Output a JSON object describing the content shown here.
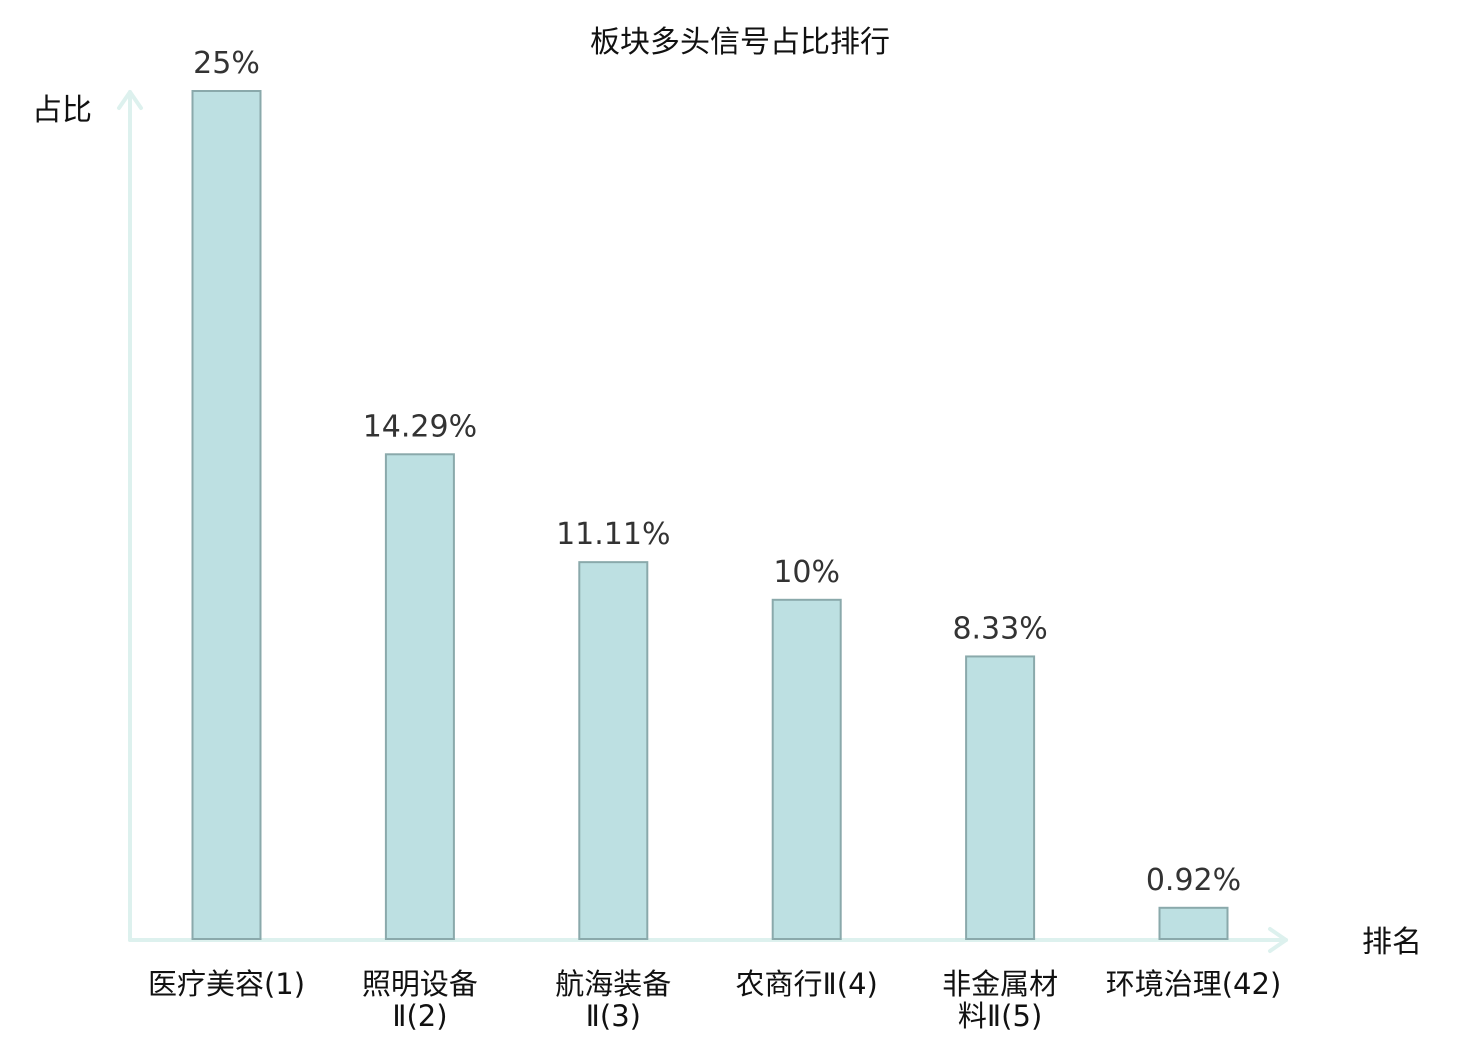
{
  "chart_data": {
    "type": "bar",
    "title": "板块多头信号占比排行",
    "ylabel": "占比",
    "xlabel": "排名",
    "categories": [
      [
        "医疗美容(1)"
      ],
      [
        "照明设备",
        "Ⅱ(2)"
      ],
      [
        "航海装备",
        "Ⅱ(3)"
      ],
      [
        "农商行Ⅱ(4)"
      ],
      [
        "非金属材",
        "料Ⅱ(5)"
      ],
      [
        "环境治理(42)"
      ]
    ],
    "values": [
      25,
      14.29,
      11.11,
      10,
      8.33,
      0.92
    ],
    "value_labels": [
      "25%",
      "14.29%",
      "11.11%",
      "10%",
      "8.33%",
      "0.92%"
    ],
    "highlight_index": 5,
    "ylim": [
      0,
      25
    ],
    "grid": false,
    "colors": {
      "bar_fill": "#bde0e2",
      "bar_stroke": "#8aa9ab",
      "axis": "#ddf1ee",
      "highlight_text": "#e00000",
      "text": "#111111",
      "value_text": "#333333"
    }
  }
}
